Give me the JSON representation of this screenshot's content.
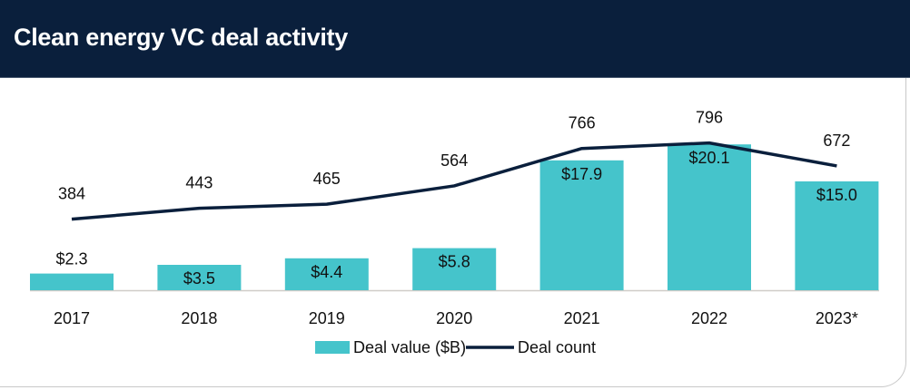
{
  "title": "Clean energy VC deal activity",
  "chart_data": {
    "type": "bar+line",
    "title": "Clean energy VC deal activity",
    "categories": [
      "2017",
      "2018",
      "2019",
      "2020",
      "2021",
      "2022",
      "2023*"
    ],
    "series": [
      {
        "name": "Deal value ($B)",
        "type": "bar",
        "values": [
          2.3,
          3.5,
          4.4,
          5.8,
          17.9,
          20.1,
          15.0
        ],
        "labels": [
          "$2.3",
          "$3.5",
          "$4.4",
          "$5.8",
          "$17.9",
          "$20.1",
          "$15.0"
        ],
        "color": "#45c4cb"
      },
      {
        "name": "Deal count",
        "type": "line",
        "values": [
          384,
          443,
          465,
          564,
          766,
          796,
          672
        ],
        "labels": [
          "384",
          "443",
          "465",
          "564",
          "766",
          "796",
          "672"
        ],
        "color": "#0a1f3c"
      }
    ],
    "legend": "bottom-center",
    "grid": false
  }
}
